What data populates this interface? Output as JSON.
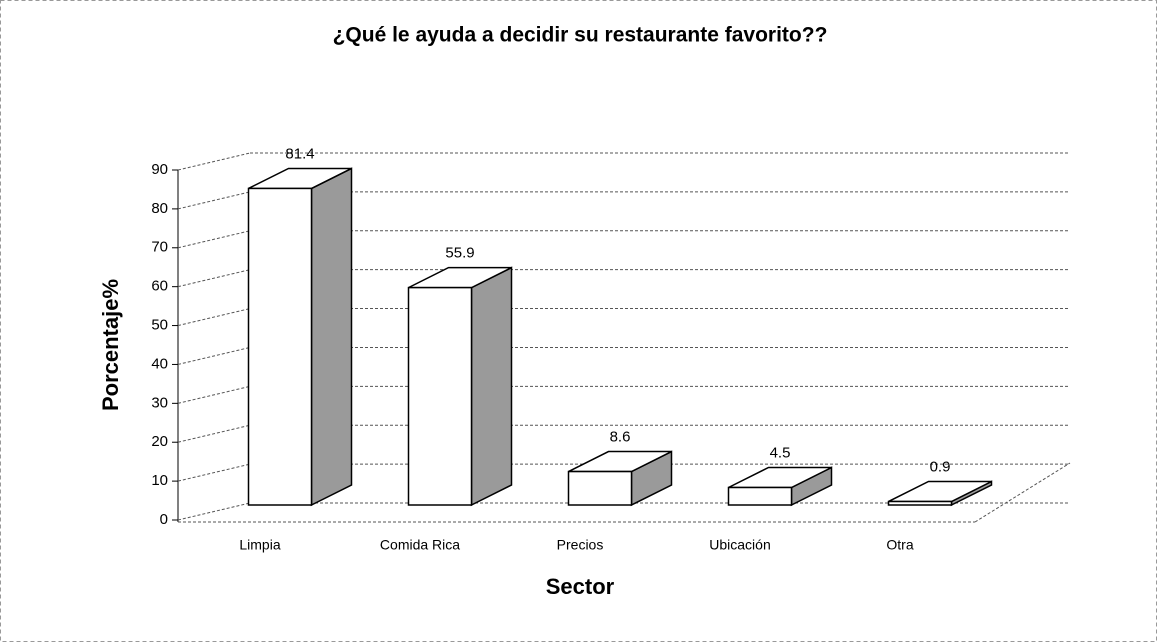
{
  "chart_data": {
    "type": "bar3d",
    "title": "¿Qué le ayuda a decidir su restaurante favorito??",
    "x_label": "Sector",
    "y_label": "Porcentaje%",
    "categories": [
      "Limpia",
      "Comida Rica",
      "Precios",
      "Ubicación",
      "Otra"
    ],
    "values": [
      81.4,
      55.9,
      8.6,
      4.5,
      0.9
    ],
    "color": "#ffffff",
    "side_color": "#9a9a9a",
    "ylim": [
      0,
      90
    ],
    "yticks": [
      0,
      10,
      20,
      30,
      40,
      50,
      60,
      70,
      80,
      90
    ],
    "grid": true
  }
}
